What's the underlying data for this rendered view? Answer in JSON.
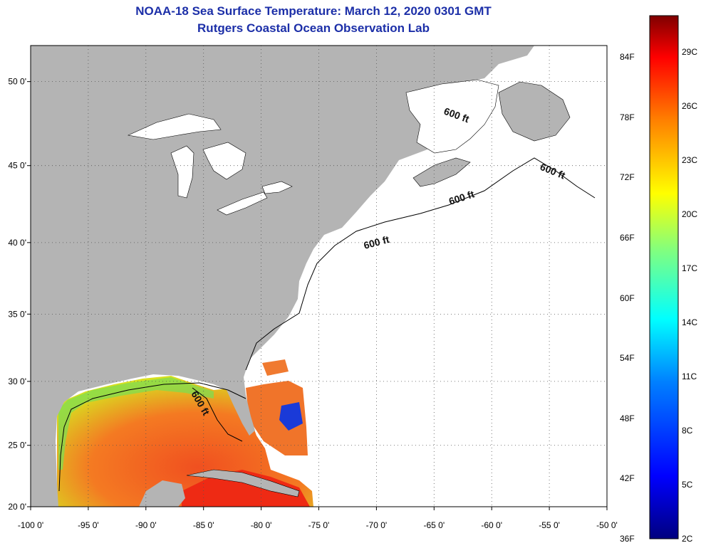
{
  "title": {
    "line1": "NOAA-18 Sea Surface Temperature:  March 12, 2020 0301 GMT",
    "line2": "Rutgers Coastal Ocean Observation Lab"
  },
  "axes": {
    "x_ticks": [
      "-100 0'",
      "-95 0'",
      "-90 0'",
      "-85 0'",
      "-80 0'",
      "-75 0'",
      "-70 0'",
      "-65 0'",
      "-60 0'",
      "-55 0'",
      "-50 0'"
    ],
    "x_values": [
      -100,
      -95,
      -90,
      -85,
      -80,
      -75,
      -70,
      -65,
      -60,
      -55,
      -50
    ],
    "y_ticks": [
      "50 0'",
      "45 0'",
      "40 0'",
      "35 0'",
      "30 0'",
      "25 0'",
      "20 0'"
    ],
    "y_values": [
      50,
      45,
      40,
      35,
      30,
      25,
      20
    ],
    "lon_range": [
      -100,
      -50
    ],
    "lat_range": [
      20,
      52
    ]
  },
  "contours": {
    "label": "600 ft",
    "labels": [
      "600 ft",
      "600 ft",
      "600 ft",
      "600 ft",
      "600 ft"
    ]
  },
  "colorbar": {
    "fahrenheit": [
      "84F",
      "78F",
      "72F",
      "66F",
      "60F",
      "54F",
      "48F",
      "42F",
      "36F"
    ],
    "celsius": [
      "29C",
      "26C",
      "23C",
      "20C",
      "17C",
      "14C",
      "11C",
      "8C",
      "5C",
      "2C"
    ]
  },
  "colors": {
    "land": "#b4b4b4",
    "title": "#1c2fa8",
    "warm": "#f04a1a",
    "mid": "#f89a20",
    "cool": "#1a3ad8"
  }
}
